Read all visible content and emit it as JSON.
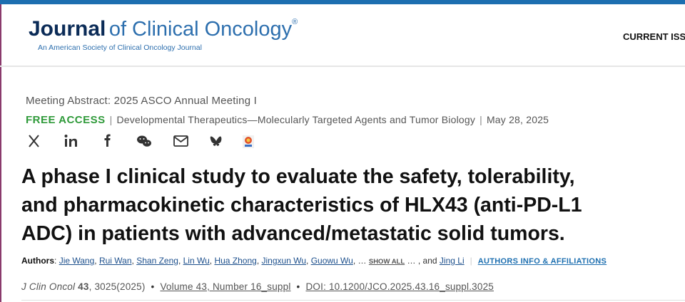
{
  "header": {
    "journal_name": "Journal",
    "journal_name_rest": "of Clinical Oncology",
    "registered_mark": "®",
    "tagline": "An American Society of Clinical Oncology Journal",
    "nav_item": "CURRENT ISS"
  },
  "article": {
    "section": "Meeting Abstract: 2025 ASCO Annual Meeting I",
    "access": "FREE ACCESS",
    "separator": "|",
    "category": "Developmental Therapeutics—Molecularly Targeted Agents and Tumor Biology",
    "date": "May 28, 2025",
    "title_lines": [
      "A phase I clinical study to evaluate the safety, tolerability,",
      "and pharmacokinetic characteristics of HLX43 (anti-PD-L1",
      "ADC) in patients with advanced/metastatic solid tumors."
    ],
    "authors_label": "Authors",
    "label_colon": ":",
    "authors": [
      "Jie Wang",
      "Rui Wan",
      "Shan Zeng",
      "Lin Wu",
      "Hua Zhong",
      "Jingxun Wu",
      "Guowu Wu"
    ],
    "author_separator": ",",
    "ellipsis": "…",
    "show_all": "SHOW ALL",
    "conjunction": "and",
    "last_author": "Jing Li",
    "affiliations_link": "AUTHORS INFO & AFFILIATIONS",
    "citation": {
      "journal": "J Clin Oncol",
      "volume": "43",
      "pages": "3025(2025)",
      "bullet": "•",
      "issue": "Volume 43, Number 16_suppl",
      "doi": "DOI: 10.1200/JCO.2025.43.16_suppl.3025"
    }
  }
}
